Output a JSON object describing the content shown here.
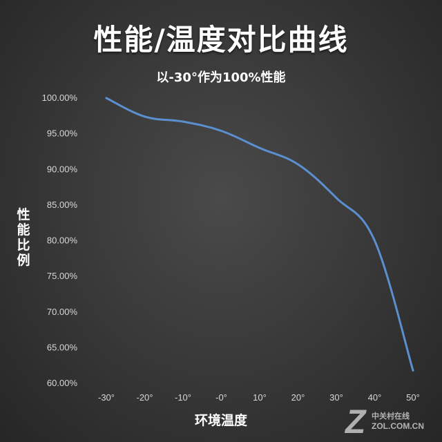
{
  "chart_data": {
    "type": "line",
    "title": "性能/温度对比曲线",
    "subtitle": "以-30°作为100%性能",
    "xlabel": "环境温度",
    "ylabel": "性能比例",
    "categories": [
      "-30°",
      "-20°",
      "-10°",
      "-0°",
      "10°",
      "20°",
      "30°",
      "40°",
      "50°"
    ],
    "x": [
      -30,
      -20,
      -10,
      0,
      10,
      20,
      30,
      40,
      50
    ],
    "y_ticks": [
      "100.00%",
      "95.00%",
      "90.00%",
      "85.00%",
      "80.00%",
      "75.00%",
      "70.00%",
      "65.00%",
      "60.00%"
    ],
    "ylim": [
      60,
      100
    ],
    "grid": false,
    "series": [
      {
        "values": [
          100.0,
          97.4,
          96.7,
          95.4,
          93.0,
          90.7,
          86.0,
          80.0,
          61.8
        ],
        "color": "#5b8fd0"
      }
    ]
  },
  "watermark": {
    "logo_letter": "Z",
    "cn_text": "中关村在线",
    "en_text": "ZOL.COM.CN"
  }
}
